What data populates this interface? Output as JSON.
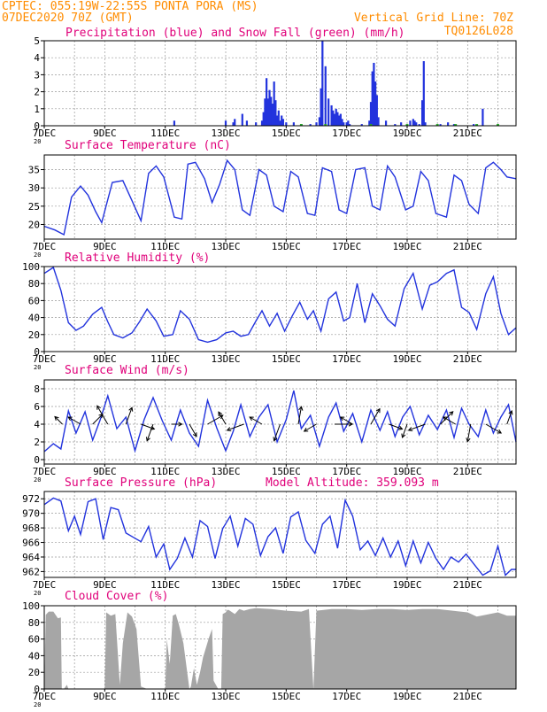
{
  "header": {
    "line1": "CPTEC:   055:19W-22:55S   PONTA PORA (MS)",
    "line2": "07DEC2020 70Z (GMT)",
    "grid_note": "Vertical Grid Line: 70Z",
    "code": "TQ0126L028"
  },
  "colors": {
    "header": "#ff8c00",
    "title": "#e0007a",
    "series": "#2233dd",
    "snow": "#22aa22",
    "cloud": "#a6a6a6",
    "grid": "#999999"
  },
  "x_axis": {
    "labels": [
      "7DEC",
      "9DEC",
      "11DEC",
      "13DEC",
      "15DEC",
      "17DEC",
      "19DEC",
      "21DEC"
    ],
    "label_days": [
      0,
      2,
      4,
      6,
      8,
      10,
      12,
      14
    ],
    "small_label": "20"
  },
  "chart_data": [
    {
      "id": "precip",
      "type": "bar",
      "title": "Precipitation (blue) and Snow Fall (green) (mm/h)",
      "ylim": [
        0,
        5
      ],
      "yticks": [
        0,
        1,
        2,
        3,
        4,
        5
      ],
      "xlim_days": [
        0,
        15.6
      ],
      "series": [
        {
          "name": "Precipitation",
          "x": [
            4.3,
            6.0,
            6.25,
            6.3,
            6.55,
            6.7,
            7.0,
            7.2,
            7.25,
            7.3,
            7.35,
            7.4,
            7.45,
            7.5,
            7.55,
            7.6,
            7.65,
            7.7,
            7.75,
            7.8,
            7.85,
            7.9,
            8.0,
            8.25,
            8.5,
            8.8,
            9.0,
            9.1,
            9.15,
            9.2,
            9.3,
            9.4,
            9.5,
            9.55,
            9.6,
            9.65,
            9.7,
            9.75,
            9.8,
            9.85,
            9.9,
            10.0,
            10.05,
            10.1,
            10.5,
            10.75,
            10.8,
            10.85,
            10.9,
            10.95,
            11.0,
            11.05,
            11.3,
            11.6,
            11.8,
            12.1,
            12.2,
            12.25,
            12.3,
            12.4,
            12.5,
            12.55,
            12.6,
            13.1,
            13.35,
            13.55,
            14.2,
            14.5
          ],
          "values": [
            0.3,
            0.3,
            0.2,
            0.4,
            0.7,
            0.3,
            0.2,
            0.3,
            0.8,
            1.6,
            2.8,
            1.6,
            2.1,
            1.7,
            1.3,
            2.6,
            1.5,
            0.6,
            0.9,
            0.3,
            0.6,
            0.4,
            0.2,
            0.2,
            0.1,
            0.1,
            0.2,
            0.5,
            2.2,
            5.0,
            3.5,
            1.6,
            1.2,
            0.9,
            0.7,
            1.0,
            0.8,
            0.6,
            0.7,
            0.4,
            0.2,
            0.2,
            0.3,
            0.1,
            0.1,
            0.3,
            1.4,
            3.2,
            3.7,
            2.6,
            1.8,
            0.5,
            0.3,
            0.1,
            0.2,
            0.3,
            0.4,
            0.3,
            0.2,
            0.1,
            1.5,
            3.8,
            0.2,
            0.1,
            0.2,
            0.1,
            0.1,
            1.0
          ]
        },
        {
          "name": "Snow Fall",
          "x": [
            8.5,
            9.3,
            10.8,
            12.0,
            13.0,
            13.6,
            14.3,
            15.0
          ],
          "values": [
            0.1,
            0.1,
            0.1,
            0.1,
            0.1,
            0.1,
            0.1,
            0.1
          ]
        }
      ]
    },
    {
      "id": "temp",
      "type": "line",
      "title": "Surface Temperature (nC)",
      "ylim": [
        16,
        39
      ],
      "yticks": [
        20,
        25,
        30,
        35
      ],
      "x": [
        0,
        0.35,
        0.65,
        0.9,
        1.2,
        1.45,
        1.7,
        1.9,
        2.25,
        2.6,
        2.9,
        3.2,
        3.45,
        3.7,
        3.95,
        4.3,
        4.55,
        4.75,
        5.0,
        5.3,
        5.55,
        5.8,
        6.05,
        6.3,
        6.55,
        6.8,
        7.1,
        7.35,
        7.6,
        7.9,
        8.15,
        8.4,
        8.7,
        8.95,
        9.2,
        9.5,
        9.75,
        10.0,
        10.3,
        10.6,
        10.85,
        11.1,
        11.35,
        11.6,
        11.95,
        12.2,
        12.45,
        12.7,
        12.95,
        13.3,
        13.55,
        13.8,
        14.05,
        14.35,
        14.6,
        14.85,
        15.1,
        15.3,
        15.6
      ],
      "y": [
        19.5,
        18.5,
        17.2,
        27.5,
        30.5,
        28,
        23.5,
        20.5,
        31.5,
        32,
        26.5,
        21,
        34,
        36,
        33,
        22,
        21.5,
        36.5,
        37,
        32.5,
        26,
        31,
        37.5,
        35,
        24,
        22.5,
        35,
        33.5,
        25,
        23.5,
        34.5,
        33,
        23,
        22.5,
        35.5,
        34.5,
        24,
        23,
        35,
        35.5,
        25,
        24,
        36,
        33,
        24,
        25,
        34.5,
        32,
        23,
        22,
        33.5,
        32,
        25.5,
        23,
        35.5,
        37,
        35,
        33,
        32.5
      ]
    },
    {
      "id": "rh",
      "type": "line",
      "title": "Relative Humidity (%)",
      "ylim": [
        0,
        100
      ],
      "yticks": [
        0,
        20,
        40,
        60,
        80,
        100
      ],
      "x": [
        0,
        0.3,
        0.55,
        0.8,
        1.05,
        1.3,
        1.6,
        1.9,
        2.1,
        2.3,
        2.6,
        2.9,
        3.15,
        3.4,
        3.7,
        3.95,
        4.25,
        4.5,
        4.8,
        5.1,
        5.4,
        5.7,
        6.0,
        6.25,
        6.5,
        6.75,
        7.0,
        7.2,
        7.45,
        7.7,
        7.95,
        8.2,
        8.45,
        8.7,
        8.9,
        9.15,
        9.4,
        9.65,
        9.9,
        10.1,
        10.35,
        10.6,
        10.85,
        11.1,
        11.35,
        11.6,
        11.9,
        12.2,
        12.5,
        12.75,
        13.0,
        13.3,
        13.55,
        13.8,
        14.05,
        14.3,
        14.6,
        14.85,
        15.1,
        15.35,
        15.6
      ],
      "y": [
        92,
        99,
        72,
        34,
        25,
        30,
        44,
        52,
        35,
        20,
        16,
        22,
        35,
        50,
        36,
        18,
        20,
        48,
        38,
        14,
        11,
        14,
        22,
        24,
        18,
        20,
        36,
        48,
        30,
        45,
        24,
        42,
        58,
        38,
        48,
        24,
        62,
        70,
        36,
        40,
        80,
        34,
        68,
        54,
        38,
        30,
        74,
        92,
        50,
        78,
        82,
        92,
        96,
        52,
        46,
        26,
        68,
        88,
        45,
        20,
        28
      ]
    },
    {
      "id": "wind",
      "type": "line",
      "title": "Surface Wind (m/s)",
      "ylim": [
        -0.5,
        9
      ],
      "yticks": [
        0,
        2,
        4,
        6,
        8
      ],
      "x": [
        0,
        0.3,
        0.55,
        0.8,
        1.05,
        1.35,
        1.6,
        1.85,
        2.1,
        2.4,
        2.7,
        3.0,
        3.3,
        3.6,
        3.9,
        4.2,
        4.5,
        4.8,
        5.1,
        5.4,
        5.7,
        6.0,
        6.25,
        6.5,
        6.8,
        7.1,
        7.4,
        7.7,
        8.0,
        8.25,
        8.5,
        8.8,
        9.1,
        9.4,
        9.65,
        9.9,
        10.2,
        10.5,
        10.8,
        11.1,
        11.35,
        11.6,
        11.85,
        12.1,
        12.4,
        12.7,
        13.0,
        13.3,
        13.55,
        13.8,
        14.05,
        14.35,
        14.6,
        14.85,
        15.1,
        15.35,
        15.6
      ],
      "y": [
        0.9,
        1.8,
        1.2,
        5.5,
        3.0,
        5.4,
        2.2,
        4.5,
        7.2,
        3.5,
        4.8,
        1.0,
        4.5,
        7.0,
        4.4,
        2.2,
        5.6,
        3.0,
        1.5,
        6.7,
        3.6,
        1.0,
        3.2,
        6.2,
        2.6,
        4.8,
        6.2,
        2.0,
        4.5,
        7.8,
        3.5,
        5.0,
        1.5,
        4.8,
        6.4,
        3.2,
        5.2,
        2.0,
        5.6,
        3.3,
        5.4,
        2.6,
        4.8,
        6.0,
        2.8,
        5.0,
        3.4,
        5.6,
        2.5,
        5.8,
        4.0,
        2.6,
        5.6,
        3.0,
        4.8,
        6.2,
        2.0
      ],
      "arrows": {
        "x": [
          0.6,
          1.2,
          1.6,
          2.1,
          2.7,
          3.2,
          3.6,
          4.2,
          4.8,
          5.4,
          6.0,
          6.6,
          7.2,
          7.8,
          8.4,
          9.0,
          9.6,
          10.2,
          10.8,
          11.4,
          12.0,
          12.6,
          13.1,
          13.6,
          14.1,
          14.6,
          15.3
        ],
        "speed": [
          3,
          4,
          4,
          6,
          5,
          4,
          5,
          3,
          4,
          5,
          4,
          5,
          4,
          5,
          5,
          4,
          5,
          4,
          5,
          4,
          4,
          5,
          5,
          4,
          5,
          5,
          4
        ],
        "dir_deg": [
          315,
          300,
          45,
          330,
          20,
          110,
          200,
          90,
          150,
          60,
          330,
          250,
          300,
          200,
          10,
          240,
          90,
          300,
          30,
          110,
          200,
          250,
          45,
          300,
          190,
          120,
          20
        ]
      }
    },
    {
      "id": "pressure",
      "type": "line",
      "title": "Surface Pressure (hPa)",
      "subtitle": "Model Altitude: 359.093 m",
      "ylim": [
        961.2,
        973
      ],
      "yticks": [
        962,
        964,
        966,
        968,
        970,
        972
      ],
      "x": [
        0,
        0.3,
        0.55,
        0.8,
        1.0,
        1.2,
        1.45,
        1.7,
        1.95,
        2.2,
        2.45,
        2.7,
        2.95,
        3.2,
        3.45,
        3.7,
        3.95,
        4.15,
        4.4,
        4.65,
        4.9,
        5.15,
        5.4,
        5.65,
        5.9,
        6.15,
        6.4,
        6.65,
        6.9,
        7.15,
        7.4,
        7.65,
        7.9,
        8.15,
        8.4,
        8.65,
        8.95,
        9.2,
        9.45,
        9.7,
        9.95,
        10.2,
        10.45,
        10.7,
        10.95,
        11.2,
        11.45,
        11.7,
        11.95,
        12.2,
        12.45,
        12.7,
        12.95,
        13.2,
        13.45,
        13.7,
        13.95,
        14.25,
        14.5,
        14.75,
        15.0,
        15.25,
        15.45,
        15.6
      ],
      "y": [
        971.2,
        972.1,
        971.7,
        967.6,
        969.6,
        967.1,
        971.6,
        972.0,
        966.4,
        970.8,
        970.5,
        967.3,
        966.7,
        966.1,
        968.2,
        964.0,
        965.8,
        962.3,
        963.8,
        966.6,
        964.0,
        969.0,
        968.2,
        963.8,
        967.9,
        969.6,
        965.5,
        969.3,
        968.5,
        964.2,
        966.8,
        968.0,
        964.5,
        969.5,
        970.2,
        966.3,
        964.5,
        968.5,
        969.6,
        965.2,
        971.8,
        969.6,
        965.0,
        966.2,
        964.2,
        966.6,
        964.0,
        966.2,
        962.8,
        966.2,
        963.2,
        966.0,
        963.8,
        962.3,
        964.0,
        963.3,
        964.4,
        962.8,
        961.5,
        962.1,
        965.5,
        961.5,
        962.3,
        962.3
      ]
    },
    {
      "id": "cloud",
      "type": "area",
      "title": "Cloud Cover (%)",
      "ylim": [
        0,
        100
      ],
      "yticks": [
        0,
        20,
        40,
        60,
        80,
        100
      ],
      "x": [
        0,
        0.05,
        0.15,
        0.3,
        0.45,
        0.55,
        0.58,
        0.65,
        0.75,
        0.8,
        0.9,
        1.0,
        1.5,
        2.0,
        2.05,
        2.2,
        2.35,
        2.5,
        2.6,
        2.75,
        2.9,
        3.05,
        3.2,
        3.4,
        3.5,
        3.6,
        3.75,
        3.85,
        4.0,
        4.05,
        4.15,
        4.25,
        4.35,
        4.45,
        4.6,
        4.8,
        4.85,
        4.95,
        5.05,
        5.15,
        5.25,
        5.35,
        5.45,
        5.55,
        5.6,
        5.75,
        5.85,
        5.9,
        6.0,
        6.05,
        6.1,
        6.3,
        6.45,
        6.6,
        6.8,
        7.0,
        7.5,
        8.0,
        8.5,
        8.75,
        8.9,
        9.0,
        9.5,
        10.0,
        10.5,
        11.0,
        11.5,
        12.0,
        12.5,
        13.0,
        13.5,
        14.0,
        14.3,
        14.6,
        15.0,
        15.3,
        15.6
      ],
      "y": [
        0,
        89,
        93,
        93,
        85,
        86,
        0,
        0,
        5,
        0,
        0,
        0,
        0,
        0,
        92,
        88,
        90,
        5,
        55,
        92,
        87,
        72,
        3,
        0,
        0,
        0,
        0,
        0,
        0,
        60,
        30,
        88,
        90,
        78,
        55,
        0,
        3,
        25,
        5,
        20,
        38,
        50,
        62,
        72,
        10,
        0,
        0,
        90,
        92,
        95,
        95,
        90,
        96,
        94,
        96,
        97,
        96,
        94,
        93,
        96,
        0,
        94,
        96,
        96,
        95,
        96,
        96,
        95,
        96,
        96,
        94,
        92,
        87,
        89,
        92,
        88,
        88
      ]
    }
  ]
}
